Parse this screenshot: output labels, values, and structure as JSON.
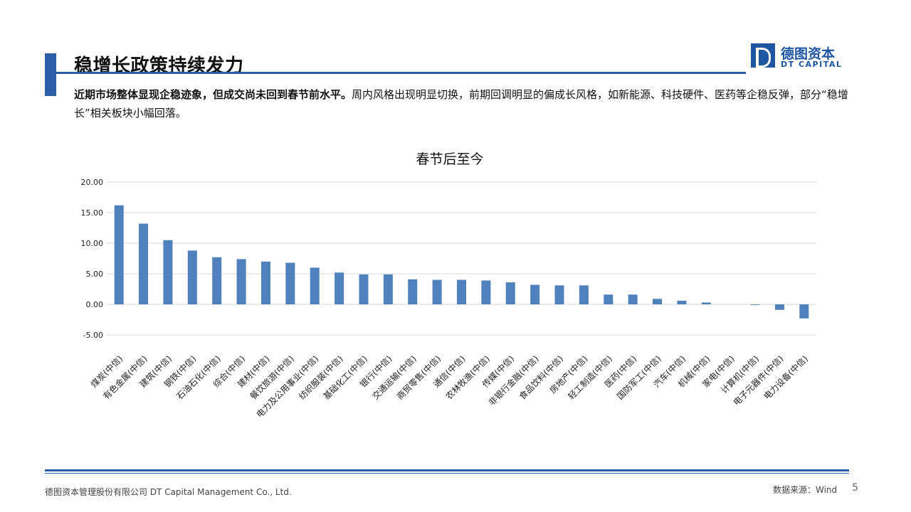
{
  "header": {
    "title": "稳增长政策持续发力",
    "logo_cn": "德图资本",
    "logo_en": "DT CAPITAL"
  },
  "intro": {
    "bold": "近期市场整体显现企稳迹象，但成交尚未回到春节前水平。",
    "rest": "周内风格出现明显切换，前期回调明显的偏成长风格，如新能源、科技硬件、医药等企稳反弹，部分“稳增长”相关板块小幅回落。"
  },
  "chart_data": {
    "type": "bar",
    "title": "春节后至今",
    "xlabel": "",
    "ylabel": "",
    "ylim": [
      -5,
      20
    ],
    "yticks": [
      "20.00",
      "15.00",
      "10.00",
      "5.00",
      "0.00",
      "-5.00"
    ],
    "grid": true,
    "bar_color": "#4f81bd",
    "categories": [
      "煤炭(中信)",
      "有色金属(中信)",
      "建筑(中信)",
      "钢铁(中信)",
      "石油石化(中信)",
      "综合(中信)",
      "建材(中信)",
      "餐饮旅游(中信)",
      "电力及公用事业(中信)",
      "纺织服装(中信)",
      "基础化工(中信)",
      "银行(中信)",
      "交通运输(中信)",
      "商贸零售(中信)",
      "通信(中信)",
      "农林牧渔(中信)",
      "传媒(中信)",
      "非银行金融(中信)",
      "食品饮料(中信)",
      "房地产(中信)",
      "轻工制造(中信)",
      "医药(中信)",
      "国防军工(中信)",
      "汽车(中信)",
      "机械(中信)",
      "家电(中信)",
      "计算机(中信)",
      "电子元器件(中信)",
      "电力设备(中信)"
    ],
    "values": [
      16.2,
      13.2,
      10.5,
      8.8,
      7.7,
      7.4,
      7.0,
      6.8,
      6.0,
      5.2,
      4.9,
      4.9,
      4.1,
      4.0,
      4.0,
      3.9,
      3.6,
      3.2,
      3.1,
      3.1,
      1.6,
      1.6,
      0.9,
      0.6,
      0.3,
      0.0,
      -0.1,
      -0.9,
      -2.3
    ]
  },
  "footer": {
    "company": "德图资本管理股份有限公司 DT Capital Management Co., Ltd.",
    "source": "数据来源：Wind",
    "page": "5"
  }
}
